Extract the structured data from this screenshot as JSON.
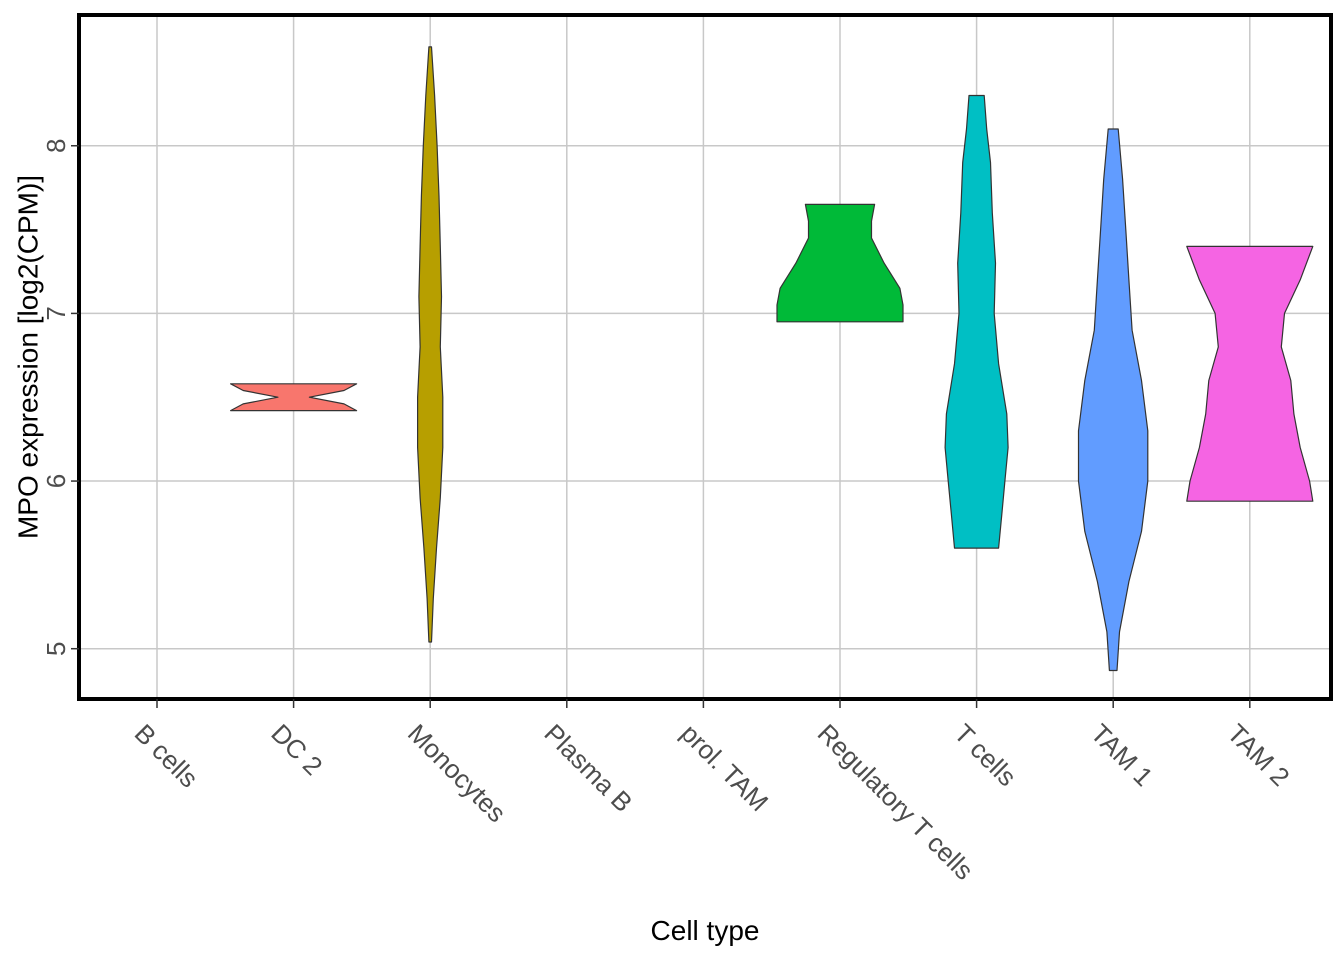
{
  "chart_data": {
    "type": "violin",
    "title": "",
    "xlabel": "Cell type",
    "ylabel": "MPO expression [log2(CPM)]",
    "ylim": [
      4.7,
      8.78
    ],
    "yticks": [
      5,
      6,
      7,
      8
    ],
    "grid": true,
    "legend": "none",
    "categories": [
      "B cells",
      "DC 2",
      "Monocytes",
      "Plasma B",
      "prol. TAM",
      "Regulatory T cells",
      "T cells",
      "TAM 1",
      "TAM 2"
    ],
    "violins": [
      {
        "category": "DC 2",
        "color": "#F8766D",
        "profile": [
          [
            6.42,
            1.0
          ],
          [
            6.46,
            0.8
          ],
          [
            6.5,
            0.25
          ],
          [
            6.54,
            0.8
          ],
          [
            6.58,
            1.0
          ]
        ]
      },
      {
        "category": "Monocytes",
        "color": "#B79F00",
        "profile": [
          [
            5.04,
            0.02
          ],
          [
            5.3,
            0.05
          ],
          [
            5.6,
            0.1
          ],
          [
            5.9,
            0.16
          ],
          [
            6.2,
            0.2
          ],
          [
            6.5,
            0.2
          ],
          [
            6.8,
            0.16
          ],
          [
            7.1,
            0.18
          ],
          [
            7.4,
            0.16
          ],
          [
            7.7,
            0.14
          ],
          [
            8.0,
            0.11
          ],
          [
            8.3,
            0.07
          ],
          [
            8.59,
            0.02
          ]
        ]
      },
      {
        "category": "Regulatory T cells",
        "color": "#00BA38",
        "profile": [
          [
            6.95,
            1.0
          ],
          [
            7.05,
            1.0
          ],
          [
            7.15,
            0.95
          ],
          [
            7.3,
            0.7
          ],
          [
            7.45,
            0.5
          ],
          [
            7.55,
            0.5
          ],
          [
            7.65,
            0.55
          ]
        ]
      },
      {
        "category": "T cells",
        "color": "#00BFC4",
        "profile": [
          [
            5.6,
            0.35
          ],
          [
            5.8,
            0.4
          ],
          [
            6.0,
            0.45
          ],
          [
            6.2,
            0.5
          ],
          [
            6.4,
            0.48
          ],
          [
            6.7,
            0.35
          ],
          [
            7.0,
            0.28
          ],
          [
            7.3,
            0.3
          ],
          [
            7.6,
            0.25
          ],
          [
            7.9,
            0.22
          ],
          [
            8.1,
            0.16
          ],
          [
            8.3,
            0.12
          ]
        ]
      },
      {
        "category": "TAM 1",
        "color": "#619CFF",
        "profile": [
          [
            4.87,
            0.06
          ],
          [
            5.1,
            0.1
          ],
          [
            5.4,
            0.25
          ],
          [
            5.7,
            0.45
          ],
          [
            6.0,
            0.55
          ],
          [
            6.3,
            0.55
          ],
          [
            6.6,
            0.45
          ],
          [
            6.9,
            0.3
          ],
          [
            7.2,
            0.25
          ],
          [
            7.5,
            0.2
          ],
          [
            7.8,
            0.15
          ],
          [
            8.1,
            0.08
          ]
        ]
      },
      {
        "category": "TAM 2",
        "color": "#F564E3",
        "profile": [
          [
            5.88,
            1.0
          ],
          [
            6.0,
            0.95
          ],
          [
            6.2,
            0.8
          ],
          [
            6.4,
            0.7
          ],
          [
            6.6,
            0.65
          ],
          [
            6.8,
            0.5
          ],
          [
            7.0,
            0.55
          ],
          [
            7.2,
            0.8
          ],
          [
            7.4,
            1.0
          ]
        ]
      }
    ]
  }
}
